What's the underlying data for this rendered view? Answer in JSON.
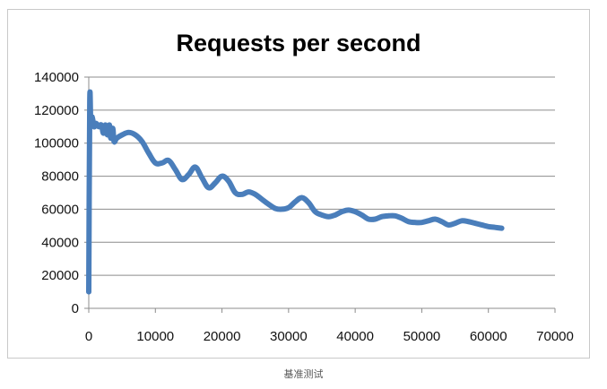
{
  "chart_data": {
    "type": "line",
    "title": "Requests per second",
    "xlabel": "",
    "ylabel": "",
    "xlim": [
      0,
      70000
    ],
    "ylim": [
      0,
      140000
    ],
    "x_ticks": [
      "0",
      "10000",
      "20000",
      "30000",
      "40000",
      "50000",
      "60000",
      "70000"
    ],
    "y_ticks": [
      "0",
      "20000",
      "40000",
      "60000",
      "80000",
      "100000",
      "120000",
      "140000"
    ],
    "grid": "horizontal",
    "legend": "none",
    "series_color": "#4a7ebb",
    "series": [
      {
        "points": [
          [
            0,
            10000
          ],
          [
            150,
            125000
          ],
          [
            300,
            112000
          ],
          [
            500,
            116000
          ],
          [
            800,
            110000
          ],
          [
            1100,
            112000
          ],
          [
            1500,
            110000
          ],
          [
            1900,
            111000
          ],
          [
            2200,
            106000
          ],
          [
            2500,
            111000
          ],
          [
            2800,
            105000
          ],
          [
            3100,
            111000
          ],
          [
            3300,
            103000
          ],
          [
            3600,
            109000
          ],
          [
            3800,
            101000
          ],
          [
            4200,
            103000
          ],
          [
            5000,
            105000
          ],
          [
            6000,
            106500
          ],
          [
            7000,
            105000
          ],
          [
            8000,
            101000
          ],
          [
            9000,
            94000
          ],
          [
            10000,
            88000
          ],
          [
            11000,
            88000
          ],
          [
            12000,
            89500
          ],
          [
            13000,
            84000
          ],
          [
            14000,
            78000
          ],
          [
            15000,
            81000
          ],
          [
            16000,
            85500
          ],
          [
            17000,
            79000
          ],
          [
            18000,
            73000
          ],
          [
            19000,
            76000
          ],
          [
            20000,
            80000
          ],
          [
            21000,
            77000
          ],
          [
            22000,
            70000
          ],
          [
            23000,
            69000
          ],
          [
            24000,
            70500
          ],
          [
            25000,
            69000
          ],
          [
            26000,
            66000
          ],
          [
            27000,
            63000
          ],
          [
            28000,
            60500
          ],
          [
            29000,
            60000
          ],
          [
            30000,
            61000
          ],
          [
            31000,
            64500
          ],
          [
            32000,
            67000
          ],
          [
            33000,
            64000
          ],
          [
            34000,
            58500
          ],
          [
            35000,
            56500
          ],
          [
            36000,
            55500
          ],
          [
            37000,
            56500
          ],
          [
            38000,
            58500
          ],
          [
            39000,
            59500
          ],
          [
            40000,
            58500
          ],
          [
            41000,
            56500
          ],
          [
            42000,
            54000
          ],
          [
            43000,
            54000
          ],
          [
            44000,
            55500
          ],
          [
            45000,
            56000
          ],
          [
            46000,
            56000
          ],
          [
            47000,
            54500
          ],
          [
            48000,
            52500
          ],
          [
            49000,
            52000
          ],
          [
            50000,
            52000
          ],
          [
            51000,
            53000
          ],
          [
            52000,
            54000
          ],
          [
            53000,
            52500
          ],
          [
            54000,
            50500
          ],
          [
            55000,
            51500
          ],
          [
            56000,
            53000
          ],
          [
            57000,
            52500
          ],
          [
            58000,
            51500
          ],
          [
            59000,
            50500
          ],
          [
            60000,
            49500
          ],
          [
            61000,
            49000
          ],
          [
            62000,
            48500
          ]
        ]
      }
    ]
  },
  "caption": "基准测试"
}
